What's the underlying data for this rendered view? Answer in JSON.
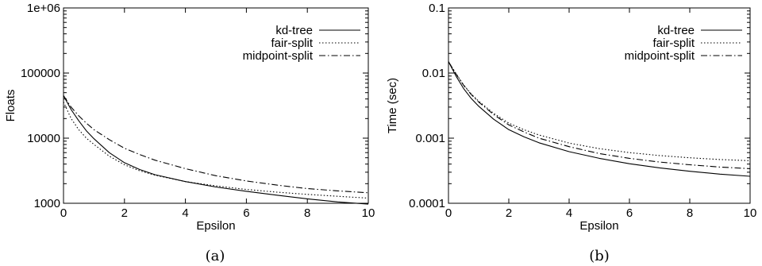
{
  "chart_data": [
    {
      "type": "line",
      "caption": "(a)",
      "xlabel": "Epsilon",
      "ylabel": "Floats",
      "xlim": [
        0,
        10
      ],
      "ylim": [
        1000,
        1000000
      ],
      "yscale": "log",
      "xticks": [
        0,
        2,
        4,
        6,
        8,
        10
      ],
      "xtick_labels": [
        "0",
        "2",
        "4",
        "6",
        "8",
        "10"
      ],
      "yticks": [
        1000,
        10000,
        100000,
        1000000
      ],
      "ytick_labels": [
        "1000",
        "10000",
        "100000",
        "1e+06"
      ],
      "legend_position": "top-right",
      "grid": false,
      "series": [
        {
          "name": "kd-tree",
          "style": "solid",
          "x": [
            0,
            0.25,
            0.5,
            0.75,
            1,
            1.5,
            2,
            2.5,
            3,
            4,
            5,
            6,
            7,
            8,
            9,
            10
          ],
          "y": [
            45000,
            27500,
            18500,
            13000,
            9800,
            6000,
            4200,
            3300,
            2750,
            2150,
            1780,
            1530,
            1330,
            1170,
            1050,
            970
          ]
        },
        {
          "name": "fair-split",
          "style": "dotted",
          "x": [
            0,
            0.25,
            0.5,
            0.75,
            1,
            1.5,
            2,
            2.5,
            3,
            4,
            5,
            6,
            7,
            8,
            9,
            10
          ],
          "y": [
            36000,
            20000,
            13500,
            10000,
            8000,
            5300,
            3900,
            3150,
            2700,
            2150,
            1850,
            1630,
            1480,
            1370,
            1280,
            1200
          ]
        },
        {
          "name": "midpoint-split",
          "style": "dashdot",
          "x": [
            0,
            0.25,
            0.5,
            0.75,
            1,
            1.5,
            2,
            2.5,
            3,
            4,
            5,
            6,
            7,
            8,
            9,
            10
          ],
          "y": [
            45000,
            30000,
            22000,
            17000,
            13500,
            9500,
            7000,
            5600,
            4600,
            3400,
            2650,
            2200,
            1900,
            1680,
            1550,
            1450
          ]
        }
      ]
    },
    {
      "type": "line",
      "caption": "(b)",
      "xlabel": "Epsilon",
      "ylabel": "Time (sec)",
      "xlim": [
        0,
        10
      ],
      "ylim": [
        0.0001,
        0.1
      ],
      "yscale": "log",
      "xticks": [
        0,
        2,
        4,
        6,
        8,
        10
      ],
      "xtick_labels": [
        "0",
        "2",
        "4",
        "6",
        "8",
        "10"
      ],
      "yticks": [
        0.0001,
        0.001,
        0.01,
        0.1
      ],
      "ytick_labels": [
        "0.0001",
        "0.001",
        "0.01",
        "0.1"
      ],
      "legend_position": "top-right",
      "grid": false,
      "series": [
        {
          "name": "kd-tree",
          "style": "solid",
          "x": [
            0,
            0.25,
            0.5,
            0.75,
            1,
            1.5,
            2,
            2.5,
            3,
            4,
            5,
            6,
            7,
            8,
            9,
            10
          ],
          "y": [
            0.015,
            0.009,
            0.0058,
            0.0041,
            0.0031,
            0.00195,
            0.00135,
            0.00105,
            0.00085,
            0.00062,
            0.00049,
            0.000405,
            0.00035,
            0.00031,
            0.00028,
            0.00026
          ]
        },
        {
          "name": "fair-split",
          "style": "dotted",
          "x": [
            0,
            0.25,
            0.5,
            0.75,
            1,
            1.5,
            2,
            2.5,
            3,
            4,
            5,
            6,
            7,
            8,
            9,
            10
          ],
          "y": [
            0.015,
            0.0098,
            0.0066,
            0.0048,
            0.0037,
            0.0024,
            0.0017,
            0.00135,
            0.00112,
            0.00084,
            0.00069,
            0.0006,
            0.00054,
            0.0005,
            0.00047,
            0.00045
          ]
        },
        {
          "name": "midpoint-split",
          "style": "dashdot",
          "x": [
            0,
            0.25,
            0.5,
            0.75,
            1,
            1.5,
            2,
            2.5,
            3,
            4,
            5,
            6,
            7,
            8,
            9,
            10
          ],
          "y": [
            0.015,
            0.0097,
            0.0065,
            0.0047,
            0.0036,
            0.0023,
            0.0016,
            0.00125,
            0.001,
            0.00074,
            0.00058,
            0.00049,
            0.00043,
            0.00039,
            0.00036,
            0.00034
          ]
        }
      ]
    }
  ]
}
